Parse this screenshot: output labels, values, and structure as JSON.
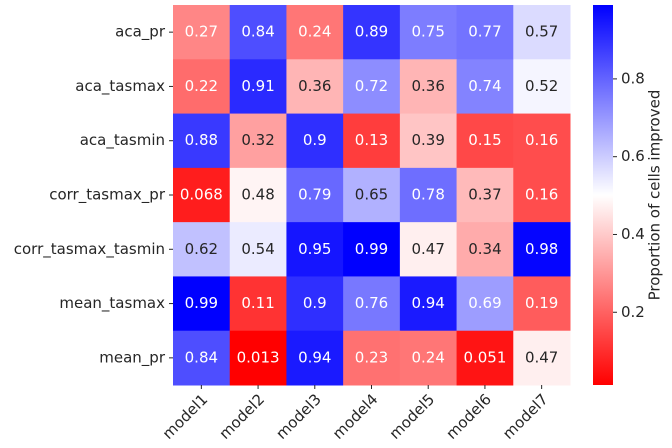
{
  "chart_data": {
    "type": "heatmap",
    "rows": [
      "aca_pr",
      "aca_tasmax",
      "aca_tasmin",
      "corr_tasmax_pr",
      "corr_tasmax_tasmin",
      "mean_tasmax",
      "mean_pr"
    ],
    "columns": [
      "model1",
      "model2",
      "model3",
      "model4",
      "model5",
      "model6",
      "model7"
    ],
    "values": [
      [
        0.27,
        0.84,
        0.24,
        0.89,
        0.75,
        0.77,
        0.57
      ],
      [
        0.22,
        0.91,
        0.36,
        0.72,
        0.36,
        0.74,
        0.52
      ],
      [
        0.88,
        0.32,
        0.9,
        0.13,
        0.39,
        0.15,
        0.16
      ],
      [
        0.068,
        0.48,
        0.79,
        0.65,
        0.78,
        0.37,
        0.16
      ],
      [
        0.62,
        0.54,
        0.95,
        0.99,
        0.47,
        0.34,
        0.98
      ],
      [
        0.99,
        0.11,
        0.9,
        0.76,
        0.94,
        0.69,
        0.19
      ],
      [
        0.84,
        0.013,
        0.94,
        0.23,
        0.24,
        0.051,
        0.47
      ]
    ],
    "colormap": [
      "#ff0000",
      "#ffffff",
      "#0000ff"
    ],
    "clim": [
      0.013,
      0.99
    ],
    "colorbar_label": "Proportion of cells improved",
    "colorbar_ticks": [
      0.2,
      0.4,
      0.6,
      0.8
    ]
  }
}
